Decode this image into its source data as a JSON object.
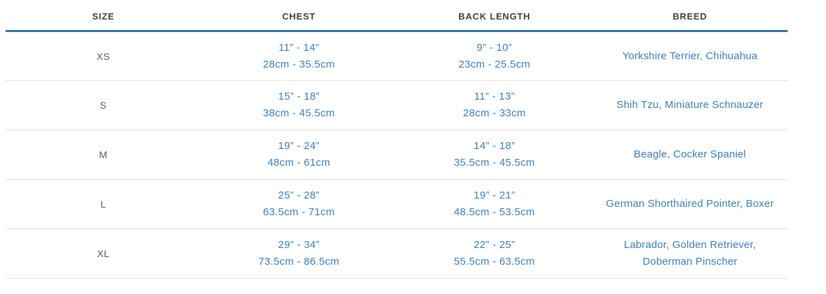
{
  "colors": {
    "background": "#ffffff",
    "header_text": "#3f3f3f",
    "header_rule_blue": "#3a74a4",
    "row_divider_gray": "#e1e1e1",
    "size_label_gray": "#57595b",
    "data_blue": "#3d7cb5"
  },
  "table": {
    "headers": {
      "size": "SIZE",
      "chest": "CHEST",
      "back_length": "BACK LENGTH",
      "breed": "BREED"
    },
    "rows": [
      {
        "size": "XS",
        "chest_in": "11” - 14”",
        "chest_cm": "28cm - 35.5cm",
        "back_in": "9” - 10”",
        "back_cm": "23cm - 25.5cm",
        "breed": "Yorkshire Terrier, Chihuahua"
      },
      {
        "size": "S",
        "chest_in": "15” - 18”",
        "chest_cm": "38cm - 45.5cm",
        "back_in": "11” - 13”",
        "back_cm": "28cm - 33cm",
        "breed": "Shih Tzu, Miniature Schnauzer"
      },
      {
        "size": "M",
        "chest_in": "19” - 24”",
        "chest_cm": "48cm - 61cm",
        "back_in": "14” - 18”",
        "back_cm": "35.5cm - 45.5cm",
        "breed": "Beagle, Cocker Spaniel"
      },
      {
        "size": "L",
        "chest_in": "25” - 28”",
        "chest_cm": "63.5cm - 71cm",
        "back_in": "19” - 21”",
        "back_cm": "48.5cm - 53.5cm",
        "breed": "German Shorthaired Pointer, Boxer"
      },
      {
        "size": "XL",
        "chest_in": "29” - 34”",
        "chest_cm": "73.5cm - 86.5cm",
        "back_in": "22” - 25”",
        "back_cm": "55.5cm - 63.5cm",
        "breed": "Labrador, Golden Retriever, Doberman Pinscher"
      }
    ]
  }
}
